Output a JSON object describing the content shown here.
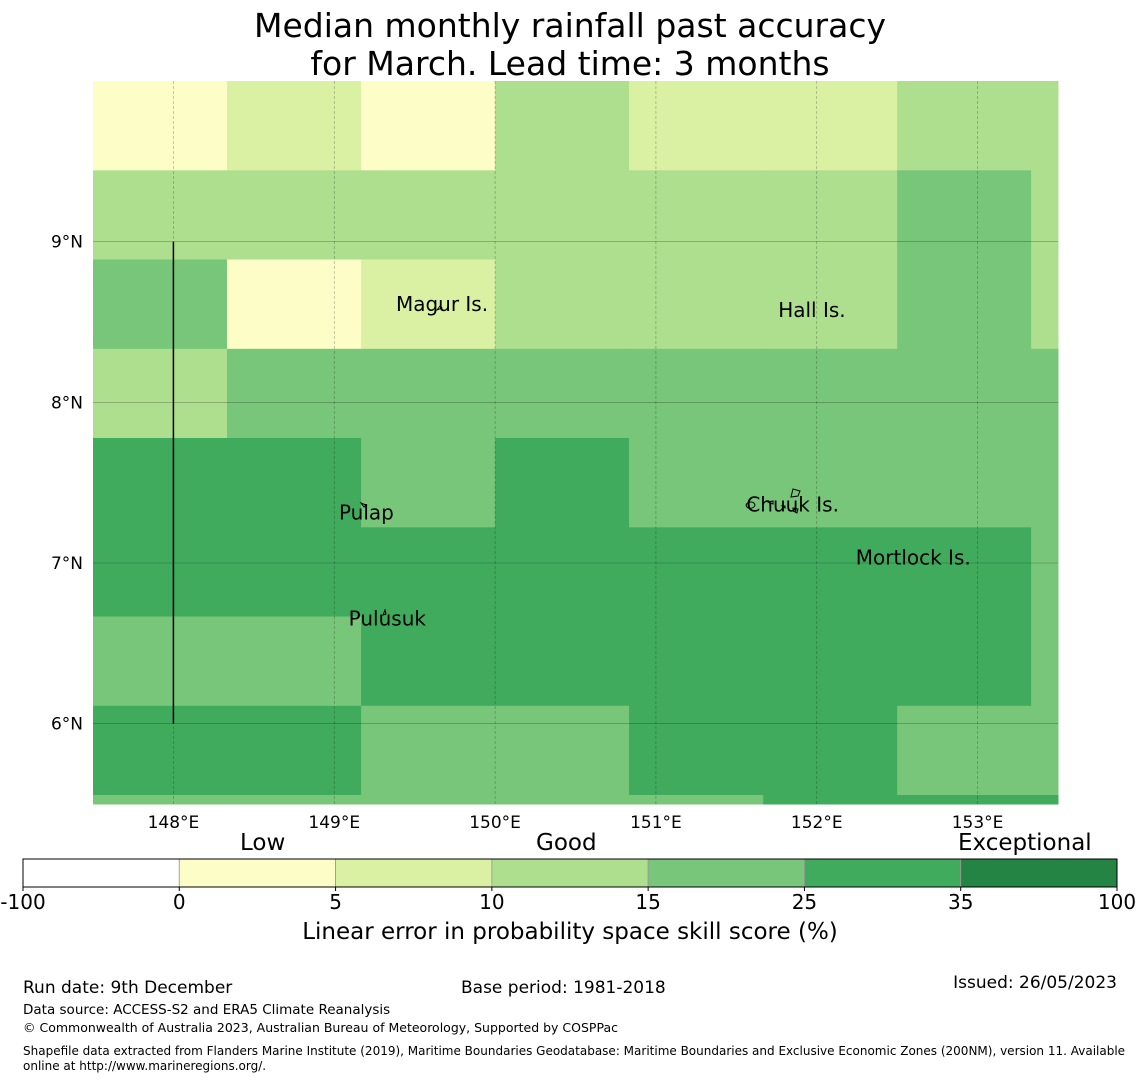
{
  "title": {
    "line1": "Median monthly rainfall past accuracy",
    "line2": "for March. Lead time: 3 months"
  },
  "colors": {
    "neg": "#ffffff",
    "c0_5": "#fdfdc8",
    "c5_10": "#daf0a3",
    "c10_15": "#addf8e",
    "c15_25": "#78c67a",
    "c25_35": "#41ab5d",
    "c35_100": "#238443"
  },
  "map": {
    "lon_range": [
      147.5,
      153.5
    ],
    "lat_range": [
      5.5,
      10.0
    ],
    "x_ticks": [
      {
        "value": 148,
        "label": "148°E"
      },
      {
        "value": 149,
        "label": "149°E"
      },
      {
        "value": 150,
        "label": "150°E"
      },
      {
        "value": 151,
        "label": "151°E"
      },
      {
        "value": 152,
        "label": "152°E"
      },
      {
        "value": 153,
        "label": "153°E"
      }
    ],
    "y_ticks": [
      {
        "value": 9,
        "label": "9°N"
      },
      {
        "value": 8,
        "label": "8°N"
      },
      {
        "value": 7,
        "label": "7°N"
      },
      {
        "value": 6,
        "label": "6°N"
      }
    ],
    "lon_edges": [
      147.5,
      148.333,
      149.167,
      150.0,
      150.833,
      151.667,
      152.5,
      153.333,
      153.5
    ],
    "lat_edges": [
      10.0,
      9.444,
      8.889,
      8.333,
      7.778,
      7.222,
      6.667,
      6.111,
      5.556,
      5.5
    ],
    "grid": [
      [
        "c0_5",
        "c5_10",
        "c0_5",
        "c10_15",
        "c5_10",
        "c5_10",
        "c10_15",
        "c10_15"
      ],
      [
        "c10_15",
        "c10_15",
        "c10_15",
        "c10_15",
        "c10_15",
        "c10_15",
        "c15_25",
        "c10_15"
      ],
      [
        "c15_25",
        "c0_5",
        "c5_10",
        "c10_15",
        "c10_15",
        "c10_15",
        "c15_25",
        "c10_15"
      ],
      [
        "c10_15",
        "c15_25",
        "c15_25",
        "c15_25",
        "c15_25",
        "c15_25",
        "c15_25",
        "c15_25"
      ],
      [
        "c25_35",
        "c25_35",
        "c15_25",
        "c25_35",
        "c15_25",
        "c15_25",
        "c15_25",
        "c15_25"
      ],
      [
        "c25_35",
        "c25_35",
        "c25_35",
        "c25_35",
        "c25_35",
        "c25_35",
        "c25_35",
        "c15_25"
      ],
      [
        "c15_25",
        "c15_25",
        "c25_35",
        "c25_35",
        "c25_35",
        "c25_35",
        "c25_35",
        "c15_25"
      ],
      [
        "c25_35",
        "c25_35",
        "c15_25",
        "c15_25",
        "c25_35",
        "c25_35",
        "c15_25",
        "c15_25"
      ],
      [
        "c15_25",
        "c15_25",
        "c15_25",
        "c15_25",
        "c15_25",
        "c25_35",
        "c25_35",
        "c25_35"
      ]
    ],
    "boundary_line": {
      "lon": 148.0,
      "lat_from": 6.0,
      "lat_to": 9.0
    },
    "places": [
      {
        "name": "Magur Is.",
        "lon": 149.67,
        "lat": 8.57
      },
      {
        "name": "Hall Is.",
        "lon": 151.97,
        "lat": 8.53
      },
      {
        "name": "Pulap",
        "lon": 149.2,
        "lat": 7.27
      },
      {
        "name": "Chuuk Is.",
        "lon": 151.85,
        "lat": 7.32
      },
      {
        "name": "Mortlock Is.",
        "lon": 152.6,
        "lat": 6.99
      },
      {
        "name": "Pulusuk",
        "lon": 149.33,
        "lat": 6.61
      }
    ]
  },
  "legend": {
    "bins": [
      {
        "key": "neg",
        "from": "-100",
        "to": "0"
      },
      {
        "key": "c0_5",
        "from": "0",
        "to": "5"
      },
      {
        "key": "c5_10",
        "from": "5",
        "to": "10"
      },
      {
        "key": "c10_15",
        "from": "10",
        "to": "15"
      },
      {
        "key": "c15_25",
        "from": "15",
        "to": "25"
      },
      {
        "key": "c25_35",
        "from": "25",
        "to": "35"
      },
      {
        "key": "c35_100",
        "from": "35",
        "to": "100"
      }
    ],
    "tick_labels": [
      "-100",
      "0",
      "5",
      "10",
      "15",
      "25",
      "35",
      "100"
    ],
    "category_low": "Low",
    "category_good": "Good",
    "category_exceptional": "Exceptional",
    "axis_label": "Linear error in probability space skill score (%)"
  },
  "footer": {
    "run_date": "Run date: 9th December",
    "base_period": "Base period: 1981-2018",
    "issued": "Issued: 26/05/2023",
    "data_source": "Data source: ACCESS-S2 and ERA5 Climate Reanalysis",
    "copyright": "© Commonwealth of Australia 2023, Australian Bureau of Meteorology, Supported by COSPPac",
    "shapefile_line1": "Shapefile data extracted from Flanders Marine Institute (2019), Maritime Boundaries Geodatabase: Maritime Boundaries and Exclusive Economic Zones (200NM), version 11. Available",
    "shapefile_line2": "online at http://www.marineregions.org/."
  }
}
